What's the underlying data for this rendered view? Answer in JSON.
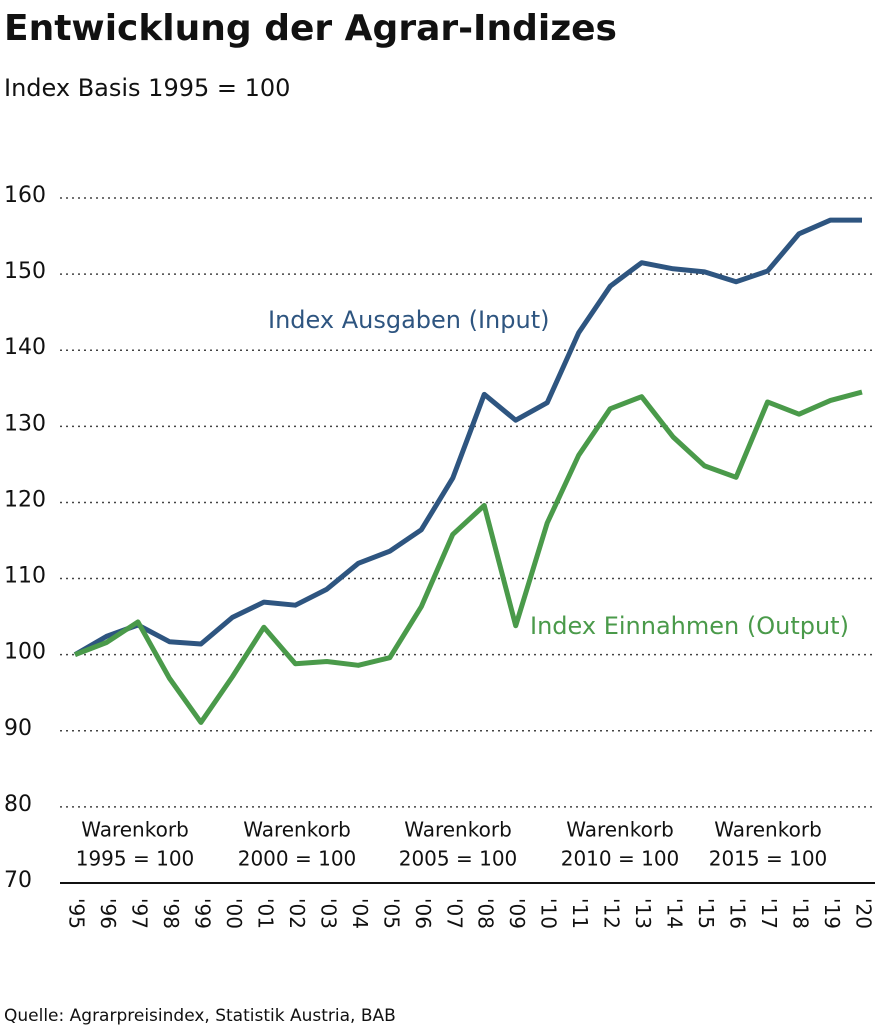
{
  "chart_data": {
    "type": "line",
    "title": "Entwicklung der Agrar-Indizes",
    "subtitle": "Index Basis 1995 = 100",
    "categories": [
      "'95",
      "'96",
      "'97",
      "'98",
      "'99",
      "'00",
      "'01",
      "'02",
      "'03",
      "'04",
      "'05",
      "'06",
      "'07",
      "'08",
      "'09",
      "'10",
      "'11",
      "'12",
      "'13",
      "'14",
      "'15",
      "'16",
      "'17",
      "'18",
      "'19",
      "'20"
    ],
    "series": [
      {
        "name": "Index Ausgaben (Input)",
        "color": "#2e5580",
        "values": [
          100,
          102.4,
          103.9,
          101.7,
          101.4,
          104.9,
          106.9,
          106.5,
          108.6,
          112.0,
          113.6,
          116.4,
          123.2,
          134.2,
          130.8,
          133.1,
          142.3,
          148.4,
          151.5,
          150.7,
          150.3,
          149.0,
          150.4,
          155.3,
          157.1,
          157.1
        ]
      },
      {
        "name": "Index Einnahmen (Output)",
        "color": "#4a9a4a",
        "values": [
          100,
          101.6,
          104.3,
          96.9,
          91.1,
          97.1,
          103.6,
          98.8,
          99.1,
          98.6,
          99.6,
          106.3,
          115.8,
          119.6,
          103.8,
          117.3,
          126.2,
          132.3,
          133.9,
          128.6,
          124.8,
          123.3,
          133.2,
          131.6,
          133.4,
          134.5
        ]
      }
    ],
    "ylim": [
      70,
      160
    ],
    "yticks": [
      70,
      80,
      90,
      100,
      110,
      120,
      130,
      140,
      150,
      160
    ],
    "grid": true,
    "basket_labels": [
      [
        "Warenkorb",
        "1995 = 100"
      ],
      [
        "Warenkorb",
        "2000 = 100"
      ],
      [
        "Warenkorb",
        "2005 = 100"
      ],
      [
        "Warenkorb",
        "2010 = 100"
      ],
      [
        "Warenkorb",
        "2015 = 100"
      ]
    ],
    "source": "Quelle: Agrarpreisindex, Statistik Austria, BAB"
  }
}
